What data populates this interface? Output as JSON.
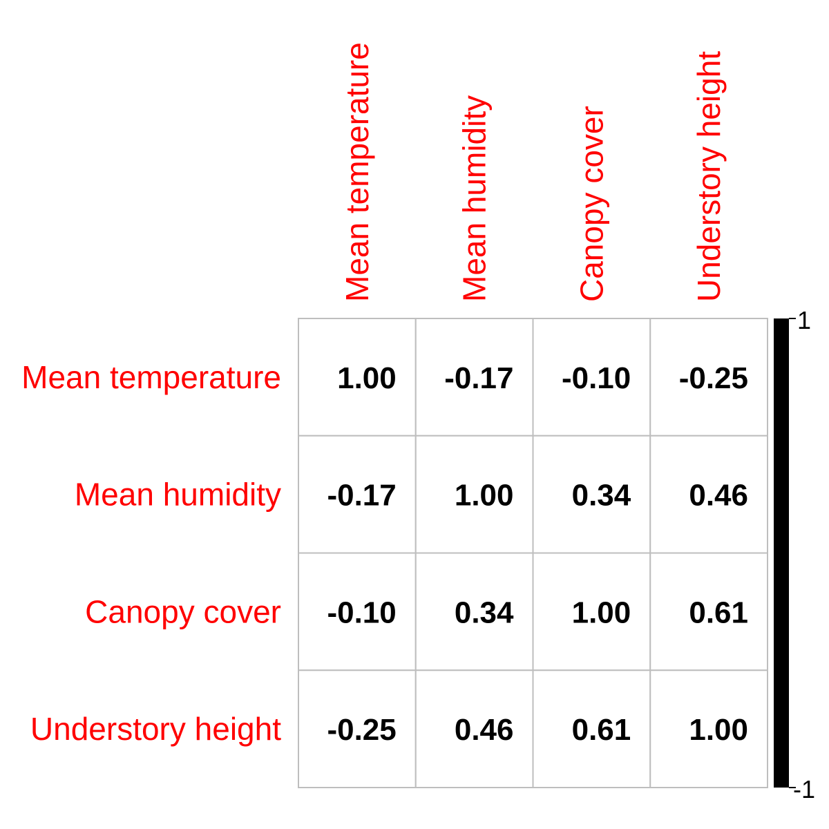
{
  "chart_data": {
    "type": "heatmap",
    "subtype": "correlation-matrix",
    "variables": [
      "Mean temperature",
      "Mean humidity",
      "Canopy cover",
      "Understory height"
    ],
    "matrix": [
      [
        "1.00",
        "-0.17",
        "-0.10",
        "-0.25"
      ],
      [
        "-0.17",
        "1.00",
        "0.34",
        "0.46"
      ],
      [
        "-0.10",
        "0.34",
        "1.00",
        "0.61"
      ],
      [
        "-0.25",
        "0.46",
        "0.61",
        "1.00"
      ]
    ],
    "colorbar": {
      "max_label": "1",
      "min_label": "-1",
      "range": [
        -1,
        1
      ]
    },
    "label_color": "#ff0000",
    "value_color": "#000000",
    "grid_color": "#bebebe",
    "colorbar_color": "#000000",
    "grid": true,
    "legend_position": "right"
  }
}
